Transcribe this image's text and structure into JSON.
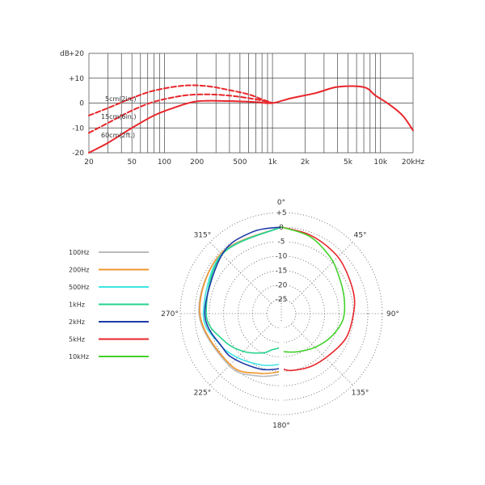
{
  "chart_data": [
    {
      "type": "line",
      "x_scale": "log",
      "xlim": [
        20,
        20000
      ],
      "ylim": [
        -20,
        20
      ],
      "ylabel": "dB",
      "y_ticks": [
        {
          "value": 20,
          "label": "+20"
        },
        {
          "value": 10,
          "label": "+10"
        },
        {
          "value": 0,
          "label": "0"
        },
        {
          "value": -10,
          "label": "-10"
        },
        {
          "value": -20,
          "label": "-20"
        }
      ],
      "x_ticks": [
        {
          "value": 20,
          "label": "20"
        },
        {
          "value": 50,
          "label": "50"
        },
        {
          "value": 100,
          "label": "100"
        },
        {
          "value": 200,
          "label": "200"
        },
        {
          "value": 500,
          "label": "500"
        },
        {
          "value": 1000,
          "label": "1k"
        },
        {
          "value": 2000,
          "label": "2k"
        },
        {
          "value": 5000,
          "label": "5k"
        },
        {
          "value": 10000,
          "label": "10k"
        },
        {
          "value": 20000,
          "label": "20kHz"
        }
      ],
      "grid": true,
      "color": "#e8262b",
      "series": [
        {
          "name": "5cm(2in.)",
          "dashed": true,
          "points": [
            [
              20,
              -5
            ],
            [
              30,
              -2
            ],
            [
              50,
              2
            ],
            [
              80,
              5
            ],
            [
              150,
              7
            ],
            [
              250,
              6.8
            ],
            [
              400,
              5.2
            ],
            [
              600,
              3.5
            ],
            [
              800,
              1.5
            ],
            [
              1000,
              0
            ]
          ]
        },
        {
          "name": "15cm(6in.)",
          "dashed": true,
          "points": [
            [
              20,
              -12
            ],
            [
              30,
              -8
            ],
            [
              50,
              -3
            ],
            [
              80,
              0.5
            ],
            [
              150,
              3
            ],
            [
              250,
              3.5
            ],
            [
              400,
              3
            ],
            [
              600,
              2
            ],
            [
              800,
              1
            ],
            [
              1000,
              0
            ]
          ]
        },
        {
          "name": "60cm(2ft.)",
          "dashed": false,
          "points": [
            [
              20,
              -20
            ],
            [
              30,
              -16
            ],
            [
              50,
              -10
            ],
            [
              80,
              -5
            ],
            [
              120,
              -2
            ],
            [
              200,
              0.7
            ],
            [
              400,
              0.8
            ],
            [
              700,
              0.4
            ],
            [
              1000,
              0
            ],
            [
              1500,
              2
            ],
            [
              2500,
              4
            ],
            [
              4000,
              6.5
            ],
            [
              7000,
              6.4
            ],
            [
              9000,
              3
            ],
            [
              12000,
              -0.5
            ],
            [
              16000,
              -5
            ],
            [
              20000,
              -11
            ]
          ]
        }
      ]
    },
    {
      "type": "polar",
      "rlim": [
        -30,
        5
      ],
      "rings": [
        5,
        0,
        -5,
        -10,
        -15,
        -20,
        -25
      ],
      "ring_labels": [
        {
          "value": 5,
          "label": "+5"
        },
        {
          "value": 0,
          "label": "0"
        },
        {
          "value": -5,
          "label": "-5"
        },
        {
          "value": -10,
          "label": "-10"
        },
        {
          "value": -15,
          "label": "-15"
        },
        {
          "value": -20,
          "label": "-20"
        },
        {
          "value": -25,
          "label": "-25"
        }
      ],
      "angle_labels": [
        {
          "angle": 0,
          "label": "0°"
        },
        {
          "angle": 45,
          "label": "45°"
        },
        {
          "angle": 90,
          "label": "90°"
        },
        {
          "angle": 135,
          "label": "135°"
        },
        {
          "angle": 180,
          "label": "180°"
        },
        {
          "angle": 225,
          "label": "225°"
        },
        {
          "angle": 270,
          "label": "270°"
        },
        {
          "angle": 315,
          "label": "315°"
        }
      ],
      "series": [
        {
          "name": "100Hz",
          "color": "#bbbbbb",
          "side": "left",
          "points": [
            [
              0,
              0
            ],
            [
              315,
              -0.5
            ],
            [
              270,
              -1.5
            ],
            [
              225,
              -4.5
            ],
            [
              200,
              -7
            ],
            [
              180,
              -9
            ]
          ]
        },
        {
          "name": "200Hz",
          "color": "#f2952d",
          "side": "left",
          "points": [
            [
              0,
              0
            ],
            [
              315,
              -0.5
            ],
            [
              270,
              -1.8
            ],
            [
              225,
              -5
            ],
            [
              200,
              -8
            ],
            [
              180,
              -10
            ]
          ]
        },
        {
          "name": "500Hz",
          "color": "#3fe4e4",
          "side": "left",
          "points": [
            [
              0,
              0
            ],
            [
              315,
              -0.8
            ],
            [
              270,
              -3
            ],
            [
              245,
              -6
            ],
            [
              225,
              -8.5
            ],
            [
              200,
              -11
            ],
            [
              180,
              -12.5
            ]
          ]
        },
        {
          "name": "1kHz",
          "color": "#24d28c",
          "side": "left",
          "points": [
            [
              0,
              0
            ],
            [
              315,
              -1
            ],
            [
              270,
              -4
            ],
            [
              245,
              -8
            ],
            [
              225,
              -11.5
            ],
            [
              205,
              -15
            ],
            [
              195,
              -17
            ],
            [
              185,
              -18
            ],
            [
              180,
              -19
            ]
          ]
        },
        {
          "name": "2kHz",
          "color": "#1e3aa8",
          "side": "left",
          "points": [
            [
              0,
              0
            ],
            [
              340,
              0
            ],
            [
              315,
              -1
            ],
            [
              270,
              -3.5
            ],
            [
              240,
              -6.5
            ],
            [
              225,
              -7.5
            ],
            [
              200,
              -9.5
            ],
            [
              180,
              -11
            ]
          ]
        },
        {
          "name": "5kHz",
          "color": "#e8262b",
          "side": "right",
          "points": [
            [
              0,
              0
            ],
            [
              20,
              -1
            ],
            [
              40,
              -2
            ],
            [
              55,
              -3
            ],
            [
              75,
              -4
            ],
            [
              90,
              -5
            ],
            [
              110,
              -6
            ],
            [
              130,
              -8
            ],
            [
              150,
              -9
            ],
            [
              170,
              -10
            ],
            [
              180,
              -11
            ]
          ]
        },
        {
          "name": "10kHz",
          "color": "#43d12a",
          "side": "right",
          "points": [
            [
              0,
              0
            ],
            [
              20,
              -1.5
            ],
            [
              40,
              -4
            ],
            [
              55,
              -6
            ],
            [
              75,
              -7.5
            ],
            [
              95,
              -8.5
            ],
            [
              115,
              -11
            ],
            [
              135,
              -13.5
            ],
            [
              155,
              -15.5
            ],
            [
              170,
              -16.5
            ],
            [
              180,
              -17
            ]
          ]
        }
      ]
    }
  ]
}
